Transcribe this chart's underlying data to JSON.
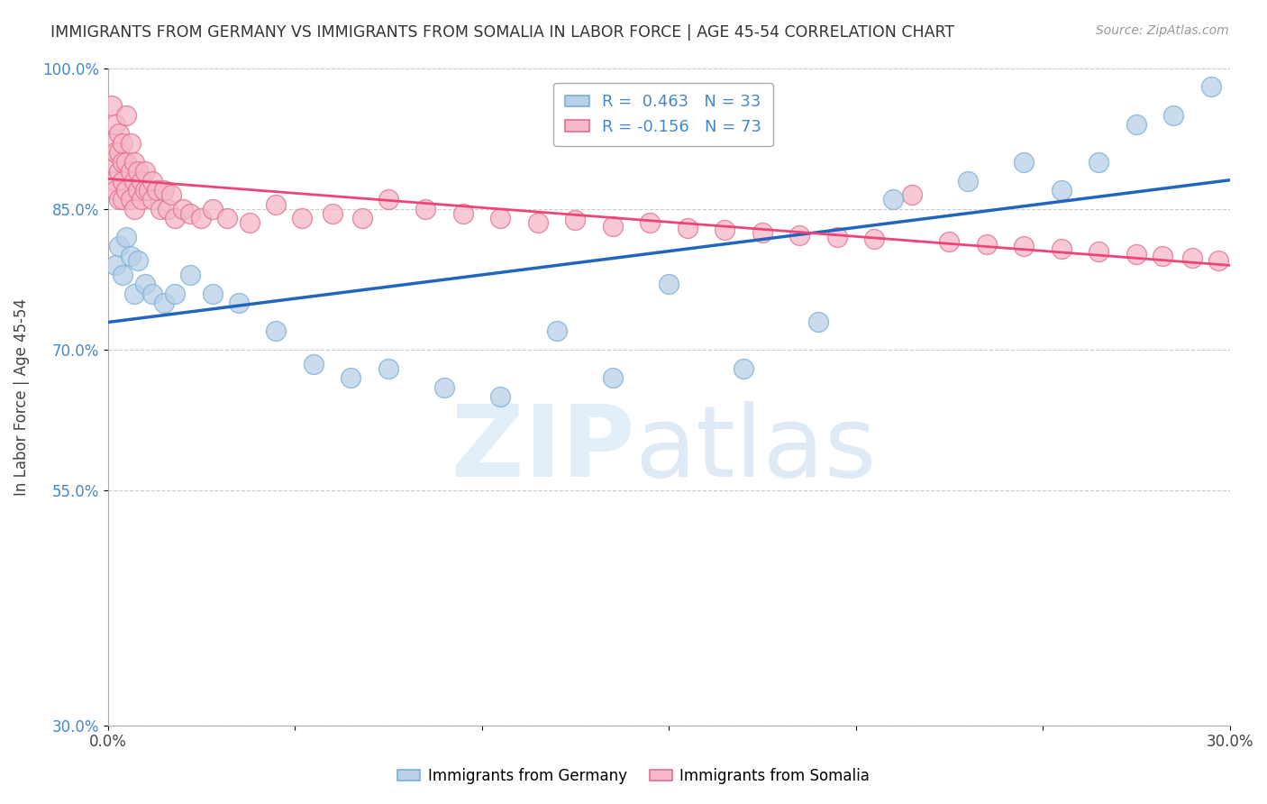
{
  "title": "IMMIGRANTS FROM GERMANY VS IMMIGRANTS FROM SOMALIA IN LABOR FORCE | AGE 45-54 CORRELATION CHART",
  "source": "Source: ZipAtlas.com",
  "ylabel": "In Labor Force | Age 45-54",
  "xlim": [
    0.0,
    0.3
  ],
  "ylim": [
    0.3,
    1.0
  ],
  "xtick_positions": [
    0.0,
    0.05,
    0.1,
    0.15,
    0.2,
    0.25,
    0.3
  ],
  "xtick_labels": [
    "0.0%",
    "",
    "",
    "",
    "",
    "",
    "30.0%"
  ],
  "ytick_positions": [
    0.3,
    0.55,
    0.7,
    0.85,
    1.0
  ],
  "ytick_labels": [
    "30.0%",
    "55.0%",
    "70.0%",
    "85.0%",
    "100.0%"
  ],
  "germany_color": "#b8d0e8",
  "germany_edge": "#7ab0d4",
  "somalia_color": "#f5b8c8",
  "somalia_edge": "#e07090",
  "germany_R": 0.463,
  "germany_N": 33,
  "somalia_R": -0.156,
  "somalia_N": 73,
  "germany_line_color": "#2266bb",
  "somalia_line_color": "#ee4477",
  "germany_x": [
    0.002,
    0.003,
    0.004,
    0.005,
    0.006,
    0.007,
    0.008,
    0.01,
    0.012,
    0.015,
    0.018,
    0.022,
    0.028,
    0.035,
    0.045,
    0.055,
    0.065,
    0.075,
    0.09,
    0.105,
    0.12,
    0.135,
    0.15,
    0.17,
    0.19,
    0.21,
    0.23,
    0.245,
    0.255,
    0.265,
    0.275,
    0.285,
    0.295
  ],
  "germany_y": [
    0.79,
    0.81,
    0.78,
    0.82,
    0.8,
    0.76,
    0.795,
    0.77,
    0.76,
    0.75,
    0.76,
    0.78,
    0.76,
    0.75,
    0.72,
    0.685,
    0.67,
    0.68,
    0.66,
    0.65,
    0.72,
    0.67,
    0.77,
    0.68,
    0.73,
    0.86,
    0.88,
    0.9,
    0.87,
    0.9,
    0.94,
    0.95,
    0.98
  ],
  "somalia_x": [
    0.001,
    0.001,
    0.001,
    0.002,
    0.002,
    0.002,
    0.002,
    0.003,
    0.003,
    0.003,
    0.003,
    0.004,
    0.004,
    0.004,
    0.004,
    0.005,
    0.005,
    0.005,
    0.006,
    0.006,
    0.006,
    0.007,
    0.007,
    0.007,
    0.008,
    0.008,
    0.009,
    0.009,
    0.01,
    0.01,
    0.011,
    0.012,
    0.012,
    0.013,
    0.014,
    0.015,
    0.016,
    0.017,
    0.018,
    0.02,
    0.022,
    0.025,
    0.028,
    0.032,
    0.038,
    0.045,
    0.052,
    0.06,
    0.068,
    0.075,
    0.085,
    0.095,
    0.105,
    0.115,
    0.125,
    0.135,
    0.145,
    0.155,
    0.165,
    0.175,
    0.185,
    0.195,
    0.205,
    0.215,
    0.225,
    0.235,
    0.245,
    0.255,
    0.265,
    0.275,
    0.282,
    0.29,
    0.297
  ],
  "somalia_y": [
    0.96,
    0.92,
    0.9,
    0.94,
    0.91,
    0.88,
    0.87,
    0.93,
    0.91,
    0.89,
    0.86,
    0.92,
    0.9,
    0.88,
    0.86,
    0.95,
    0.9,
    0.87,
    0.92,
    0.89,
    0.86,
    0.9,
    0.88,
    0.85,
    0.89,
    0.87,
    0.88,
    0.86,
    0.89,
    0.87,
    0.87,
    0.88,
    0.86,
    0.87,
    0.85,
    0.87,
    0.85,
    0.865,
    0.84,
    0.85,
    0.845,
    0.84,
    0.85,
    0.84,
    0.835,
    0.855,
    0.84,
    0.845,
    0.84,
    0.86,
    0.85,
    0.845,
    0.84,
    0.835,
    0.838,
    0.832,
    0.835,
    0.83,
    0.828,
    0.825,
    0.822,
    0.82,
    0.818,
    0.865,
    0.815,
    0.812,
    0.81,
    0.808,
    0.805,
    0.802,
    0.8,
    0.798,
    0.795
  ],
  "background_color": "#ffffff",
  "grid_color": "#cccccc"
}
